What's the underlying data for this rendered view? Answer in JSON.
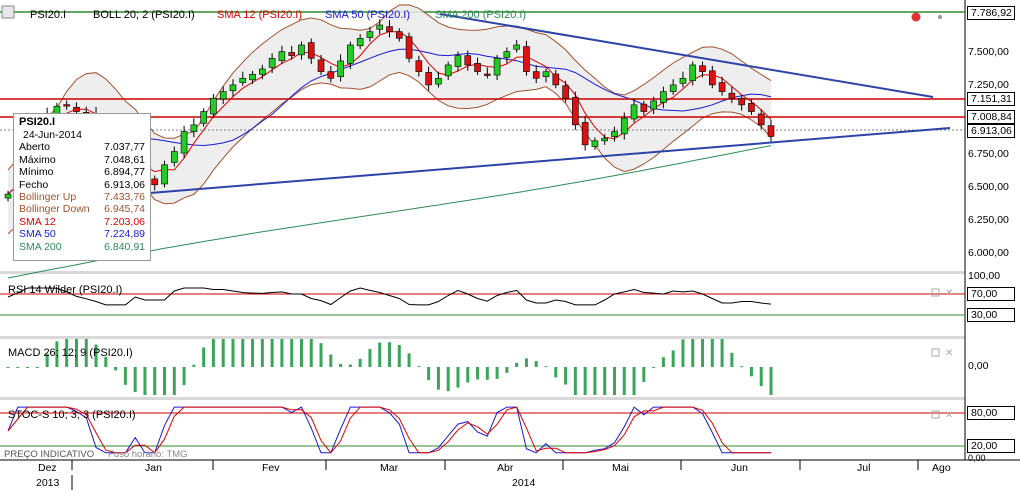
{
  "legend": {
    "symbol": "PSI20.I",
    "boll": "BOLL 20; 2 (PSI20.I)",
    "sma12": "SMA 12 (PSI20.I)",
    "sma50": "SMA 50 (PSI20.I)",
    "sma200": "SMA 200 (PSI20.I)"
  },
  "info": {
    "title": "PSI20.I",
    "date": "24-Jun-2014",
    "rows": [
      {
        "label": "Aberto",
        "value": "7.037,77",
        "color": "#000000"
      },
      {
        "label": "Máximo",
        "value": "7.048,61",
        "color": "#000000"
      },
      {
        "label": "Mínimo",
        "value": "6.894,77",
        "color": "#000000"
      },
      {
        "label": "Fecho",
        "value": "6.913,06",
        "color": "#000000"
      },
      {
        "label": "Bollinger Up",
        "value": "7.433,76",
        "color": "#a0522d"
      },
      {
        "label": "Bollinger Down",
        "value": "6.945,74",
        "color": "#a0522d"
      },
      {
        "label": "SMA 12",
        "value": "7.203,06",
        "color": "#e00000"
      },
      {
        "label": "SMA 50",
        "value": "7.224,89",
        "color": "#1a1ad0"
      },
      {
        "label": "SMA 200",
        "value": "6.840,91",
        "color": "#2e8b57"
      }
    ]
  },
  "price_axis": [
    "7.500,00",
    "7.250,00",
    "6.750,00",
    "6.500,00",
    "6.250,00",
    "6.000,00"
  ],
  "price_boxes": {
    "top": "7.786,92",
    "r1": "7.151,31",
    "r2": "7.008,84",
    "last": "6.913,06"
  },
  "rsi": {
    "label": "RSI 14 Wilder (PSI20.I)",
    "axis_top": "100,00",
    "b70": "70,00",
    "b30": "30,00"
  },
  "macd": {
    "label": "MACD 26; 12; 9 (PSI20.I)",
    "zero": "0,00"
  },
  "stoc": {
    "label": "STOC-S 10; 3; 3 (PSI20.I)",
    "b80": "80,00",
    "b20": "20,00",
    "bottom": "0,00"
  },
  "footer": {
    "preco": "PREÇO INDICATIVO",
    "fuso": "Fuso horário: TMG"
  },
  "months": [
    "Dez",
    "Jan",
    "Fev",
    "Mar",
    "Abr",
    "Mai",
    "Jun",
    "Jul",
    "Ago"
  ],
  "years": [
    "2013",
    "2014"
  ],
  "chart_data": {
    "type": "candlestick",
    "instrument": "PSI20.I",
    "last_close": 6913.06,
    "horizontal_lines": [
      7786.92,
      7151.31,
      7008.84
    ],
    "closes_approx": [
      6480,
      6620,
      6850,
      6980,
      7080,
      7140,
      7150,
      7100,
      7080,
      7000,
      6800,
      6700,
      6650,
      6800,
      6600,
      6550,
      6700,
      6800,
      6950,
      7000,
      7100,
      7200,
      7250,
      7300,
      7350,
      7380,
      7420,
      7500,
      7550,
      7520,
      7600,
      7500,
      7400,
      7350,
      7480,
      7600,
      7650,
      7700,
      7750,
      7700,
      7650,
      7500,
      7400,
      7300,
      7350,
      7450,
      7520,
      7450,
      7400,
      7380,
      7500,
      7550,
      7600,
      7400,
      7350,
      7400,
      7300,
      7200,
      7000,
      6850,
      6880,
      6900,
      6950,
      7050,
      7150,
      7100,
      7180,
      7250,
      7300,
      7350,
      7450,
      7400,
      7300,
      7250,
      7200,
      7150,
      7100,
      7000,
      6913
    ]
  }
}
